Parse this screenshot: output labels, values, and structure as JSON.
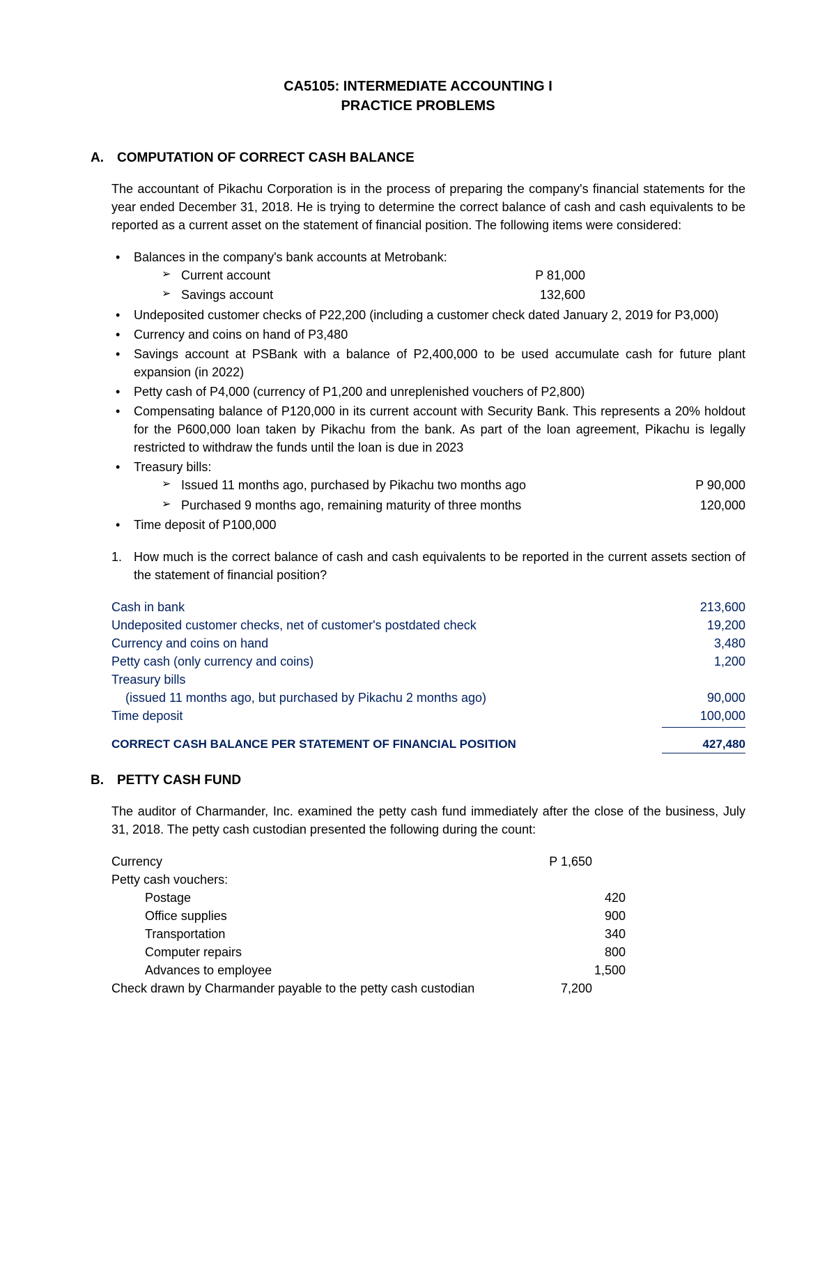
{
  "title": {
    "line1": "CA5105: INTERMEDIATE ACCOUNTING I",
    "line2": "PRACTICE PROBLEMS"
  },
  "sectionA": {
    "heading": "A. COMPUTATION OF CORRECT CASH BALANCE",
    "intro": "The accountant of Pikachu Corporation is in the process of preparing the company's financial statements for the year ended December 31, 2018. He is trying to determine the correct balance of cash and cash equivalents to be reported as a current asset on the statement of financial position. The following items were considered:",
    "bullets": {
      "b1": "Balances in the company's bank accounts at Metrobank:",
      "b1_sub1_label": "Current account",
      "b1_sub1_val": "P 81,000",
      "b1_sub2_label": "Savings account",
      "b1_sub2_val": "132,600",
      "b2": "Undeposited customer checks of P22,200 (including a customer check dated January 2, 2019 for P3,000)",
      "b3": "Currency and coins on hand of P3,480",
      "b4": "Savings account at PSBank with a balance of P2,400,000 to be used accumulate cash for future plant expansion (in 2022)",
      "b5": "Petty cash of P4,000 (currency of P1,200 and unreplenished vouchers of P2,800)",
      "b6": "Compensating balance of P120,000 in its current account with Security Bank. This represents a 20% holdout for the P600,000 loan taken by Pikachu from the bank. As part of the loan agreement, Pikachu is legally restricted to withdraw the funds until the loan is due in 2023",
      "b7": "Treasury bills:",
      "b7_sub1_label": "Issued 11 months ago, purchased by Pikachu two months ago",
      "b7_sub1_val": "P  90,000",
      "b7_sub2_label": "Purchased 9 months ago, remaining maturity of three months",
      "b7_sub2_val": "120,000",
      "b8": "Time deposit of P100,000"
    },
    "question1": "How much is the correct balance of cash and cash equivalents to be reported in the current assets section of the statement of financial position?",
    "solution": {
      "r1_label": "Cash in bank",
      "r1_val": "213,600",
      "r2_label": "Undeposited customer checks, net of customer's postdated check",
      "r2_val": "19,200",
      "r3_label": "Currency and coins on hand",
      "r3_val": "3,480",
      "r4_label": "Petty cash (only currency and coins)",
      "r4_val": "1,200",
      "r5_label": "Treasury bills",
      "r5_sub": "(issued 11 months ago, but purchased by Pikachu 2 months ago)",
      "r5_val": "90,000",
      "r6_label": "Time deposit",
      "r6_val": "100,000",
      "total_label": "CORRECT CASH BALANCE PER STATEMENT OF FINANCIAL POSITION",
      "total_val": "427,480"
    }
  },
  "sectionB": {
    "heading": "B. PETTY CASH FUND",
    "intro": "The auditor of Charmander, Inc. examined the petty cash fund immediately after the close of the business, July 31, 2018. The petty cash custodian presented the following during the count:",
    "rows": {
      "r1_label": "Currency",
      "r1_val": "P 1,650",
      "r2_label": "Petty cash vouchers:",
      "r3_label": "Postage",
      "r3_val": "420",
      "r4_label": "Office supplies",
      "r4_val": "900",
      "r5_label": "Transportation",
      "r5_val": "340",
      "r6_label": "Computer repairs",
      "r6_val": "800",
      "r7_label": "Advances to employee",
      "r7_val": "1,500",
      "r8_label": "Check drawn by Charmander payable to the petty cash custodian",
      "r8_val": "7,200"
    }
  }
}
